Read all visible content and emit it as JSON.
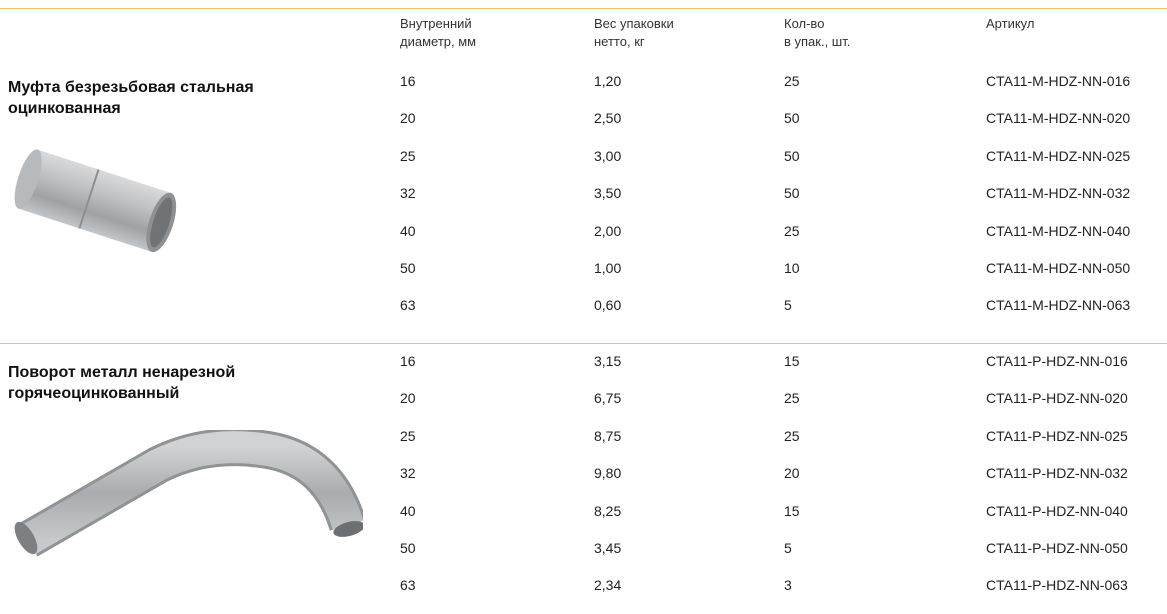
{
  "header": {
    "columns": [
      [
        "Внутренний",
        "диаметр, мм"
      ],
      [
        "Вес упаковки",
        "нетто, кг"
      ],
      [
        "Кол-во",
        "в упак., шт."
      ],
      [
        "Артикул"
      ]
    ]
  },
  "sections": [
    {
      "title": [
        "Муфта безрезьбовая стальная",
        "оцинкованная"
      ],
      "rows": [
        [
          "16",
          "1,20",
          "25",
          "CTA11-M-HDZ-NN-016"
        ],
        [
          "20",
          "2,50",
          "50",
          "CTA11-M-HDZ-NN-020"
        ],
        [
          "25",
          "3,00",
          "50",
          "CTA11-M-HDZ-NN-025"
        ],
        [
          "32",
          "3,50",
          "50",
          "CTA11-M-HDZ-NN-032"
        ],
        [
          "40",
          "2,00",
          "25",
          "CTA11-M-HDZ-NN-040"
        ],
        [
          "50",
          "1,00",
          "10",
          "CTA11-M-HDZ-NN-050"
        ],
        [
          "63",
          "0,60",
          "5",
          "CTA11-M-HDZ-NN-063"
        ]
      ]
    },
    {
      "title": [
        "Поворот металл ненарезной",
        "горячеоцинкованный"
      ],
      "rows": [
        [
          "16",
          "3,15",
          "15",
          "CTA11-P-HDZ-NN-016"
        ],
        [
          "20",
          "6,75",
          "25",
          "CTA11-P-HDZ-NN-020"
        ],
        [
          "25",
          "8,75",
          "25",
          "CTA11-P-HDZ-NN-025"
        ],
        [
          "32",
          "9,80",
          "20",
          "CTA11-P-HDZ-NN-032"
        ],
        [
          "40",
          "8,25",
          "15",
          "CTA11-P-HDZ-NN-040"
        ],
        [
          "50",
          "3,45",
          "5",
          "CTA11-P-HDZ-NN-050"
        ],
        [
          "63",
          "2,34",
          "3",
          "CTA11-P-HDZ-NN-063"
        ]
      ]
    }
  ]
}
